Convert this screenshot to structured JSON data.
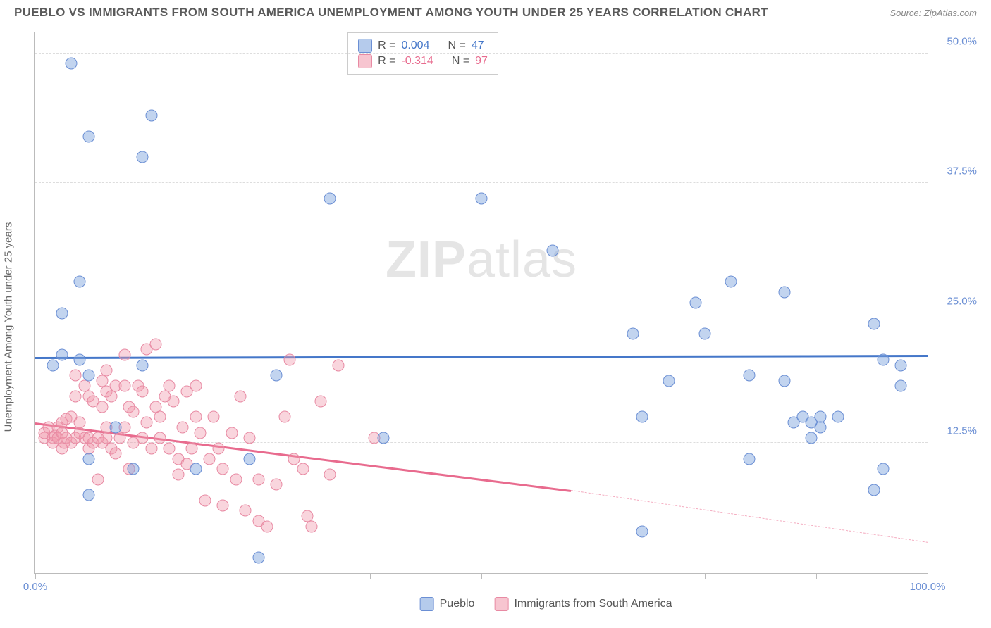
{
  "title": "PUEBLO VS IMMIGRANTS FROM SOUTH AMERICA UNEMPLOYMENT AMONG YOUTH UNDER 25 YEARS CORRELATION CHART",
  "source": "Source: ZipAtlas.com",
  "y_axis_label": "Unemployment Among Youth under 25 years",
  "watermark_a": "ZIP",
  "watermark_b": "atlas",
  "chart": {
    "type": "scatter",
    "background_color": "#ffffff",
    "grid_color": "#dddddd",
    "axis_color": "#bbbbbb",
    "x": {
      "min": 0,
      "max": 100,
      "ticks": [
        0,
        12.5,
        25,
        37.5,
        50,
        62.5,
        75,
        87.5,
        100
      ],
      "labels": {
        "0": "0.0%",
        "100": "100.0%"
      }
    },
    "y": {
      "min": 0,
      "max": 52,
      "gridlines": [
        12.5,
        25,
        37.5,
        50
      ],
      "labels": {
        "12.5": "12.5%",
        "25": "25.0%",
        "37.5": "37.5%",
        "50": "50.0%"
      }
    },
    "series": [
      {
        "name": "Pueblo",
        "color_fill": "rgba(120,160,220,0.45)",
        "color_border": "#6b8fd4",
        "trend_color": "#4577c9",
        "R": "0.004",
        "N": "47",
        "trend": {
          "y_at_x0": 20.8,
          "y_at_x100": 21.0
        },
        "points": [
          [
            4,
            49
          ],
          [
            13,
            44
          ],
          [
            6,
            42
          ],
          [
            12,
            40
          ],
          [
            50,
            36
          ],
          [
            33,
            36
          ],
          [
            58,
            31
          ],
          [
            78,
            28
          ],
          [
            94,
            24
          ],
          [
            3,
            25
          ],
          [
            84,
            27
          ],
          [
            74,
            26
          ],
          [
            2,
            20
          ],
          [
            5,
            20.5
          ],
          [
            12,
            20
          ],
          [
            6,
            19
          ],
          [
            84,
            18.5
          ],
          [
            95,
            20.5
          ],
          [
            88,
            15
          ],
          [
            75,
            23
          ],
          [
            67,
            23
          ],
          [
            71,
            18.5
          ],
          [
            80,
            19
          ],
          [
            97,
            20
          ],
          [
            97,
            18
          ],
          [
            90,
            15
          ],
          [
            87,
            13
          ],
          [
            88,
            14
          ],
          [
            85,
            14.5
          ],
          [
            68,
            15
          ],
          [
            86,
            15
          ],
          [
            87,
            14.5
          ],
          [
            94,
            8
          ],
          [
            95,
            10
          ],
          [
            80,
            11
          ],
          [
            68,
            4
          ],
          [
            27,
            19
          ],
          [
            39,
            13
          ],
          [
            24,
            11
          ],
          [
            18,
            10
          ],
          [
            9,
            14
          ],
          [
            6,
            7.5
          ],
          [
            6,
            11
          ],
          [
            11,
            10
          ],
          [
            25,
            1.5
          ],
          [
            5,
            28
          ],
          [
            3,
            21
          ]
        ]
      },
      {
        "name": "Immigrants from South America",
        "color_fill": "rgba(240,150,170,0.40)",
        "color_border": "#e88aa3",
        "trend_color": "#e86b8e",
        "R": "-0.314",
        "N": "97",
        "trend": {
          "y_at_x0": 14.5,
          "y_at_x60": 8,
          "dashed_from_x": 60,
          "y_at_x100": 3
        },
        "points": [
          [
            1,
            13
          ],
          [
            1,
            13.5
          ],
          [
            1.5,
            14
          ],
          [
            2,
            13
          ],
          [
            2,
            12.5
          ],
          [
            2.2,
            13.2
          ],
          [
            2.5,
            14
          ],
          [
            2.5,
            13
          ],
          [
            3,
            13.5
          ],
          [
            3,
            14.5
          ],
          [
            3,
            12
          ],
          [
            3.2,
            12.5
          ],
          [
            3.5,
            13
          ],
          [
            3.5,
            14.8
          ],
          [
            4,
            12.5
          ],
          [
            4,
            15
          ],
          [
            4.5,
            13
          ],
          [
            4.5,
            17
          ],
          [
            4.5,
            19
          ],
          [
            5,
            13.5
          ],
          [
            5,
            14.5
          ],
          [
            5.5,
            13
          ],
          [
            5.5,
            18
          ],
          [
            6,
            12
          ],
          [
            6,
            13
          ],
          [
            6,
            17
          ],
          [
            6.5,
            12.5
          ],
          [
            6.5,
            16.5
          ],
          [
            7,
            13
          ],
          [
            7,
            9
          ],
          [
            7.5,
            12.5
          ],
          [
            7.5,
            16
          ],
          [
            7.5,
            18.5
          ],
          [
            8,
            13
          ],
          [
            8,
            14
          ],
          [
            8,
            17.5
          ],
          [
            8,
            19.5
          ],
          [
            8.5,
            12
          ],
          [
            8.5,
            17
          ],
          [
            9,
            18
          ],
          [
            9,
            11.5
          ],
          [
            9.5,
            13
          ],
          [
            10,
            14
          ],
          [
            10,
            18
          ],
          [
            10,
            21
          ],
          [
            10.5,
            16
          ],
          [
            10.5,
            10
          ],
          [
            11,
            15.5
          ],
          [
            11,
            12.5
          ],
          [
            11.5,
            18
          ],
          [
            12,
            13
          ],
          [
            12,
            17.5
          ],
          [
            12.5,
            14.5
          ],
          [
            12.5,
            21.5
          ],
          [
            13,
            12
          ],
          [
            13.5,
            16
          ],
          [
            13.5,
            22
          ],
          [
            14,
            15
          ],
          [
            14,
            13
          ],
          [
            14.5,
            17
          ],
          [
            15,
            12
          ],
          [
            15,
            18
          ],
          [
            15.5,
            16.5
          ],
          [
            16,
            11
          ],
          [
            16,
            9.5
          ],
          [
            16.5,
            14
          ],
          [
            17,
            17.5
          ],
          [
            17,
            10.5
          ],
          [
            17.5,
            12
          ],
          [
            18,
            15
          ],
          [
            18,
            18
          ],
          [
            18.5,
            13.5
          ],
          [
            19,
            7
          ],
          [
            19.5,
            11
          ],
          [
            20,
            15
          ],
          [
            20.5,
            12
          ],
          [
            21,
            6.5
          ],
          [
            21,
            10
          ],
          [
            22,
            13.5
          ],
          [
            22.5,
            9
          ],
          [
            23,
            17
          ],
          [
            23.5,
            6
          ],
          [
            24,
            13
          ],
          [
            25,
            9
          ],
          [
            25,
            5
          ],
          [
            26,
            4.5
          ],
          [
            27,
            8.5
          ],
          [
            28,
            15
          ],
          [
            28.5,
            20.5
          ],
          [
            29,
            11
          ],
          [
            30,
            10
          ],
          [
            30.5,
            5.5
          ],
          [
            31,
            4.5
          ],
          [
            32,
            16.5
          ],
          [
            33,
            9.5
          ],
          [
            34,
            20
          ],
          [
            38,
            13
          ]
        ]
      }
    ],
    "legend_top": [
      {
        "swatch": "blue",
        "r_label": "R =",
        "r_val": "0.004",
        "n_label": "N =",
        "n_val": "47"
      },
      {
        "swatch": "pink",
        "r_label": "R =",
        "r_val": "-0.314",
        "n_label": "N =",
        "n_val": "97"
      }
    ],
    "legend_bottom": [
      {
        "swatch": "blue",
        "label": "Pueblo"
      },
      {
        "swatch": "pink",
        "label": "Immigrants from South America"
      }
    ]
  }
}
